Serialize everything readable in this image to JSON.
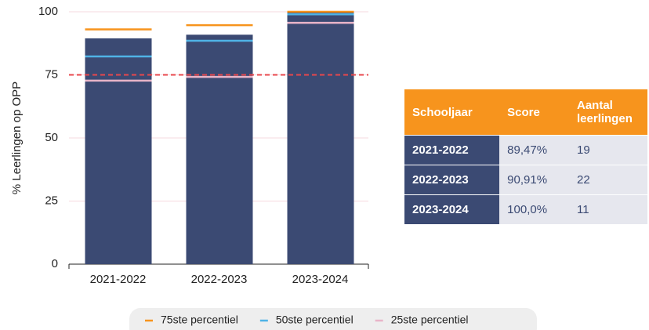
{
  "chart_data": {
    "type": "bar",
    "y_label": "% Leerlingen op OPP",
    "categories": [
      "2021-2022",
      "2022-2023",
      "2023-2024"
    ],
    "values": [
      89.47,
      90.91,
      100
    ],
    "color": "#3b4a73",
    "series": [
      {
        "name": "75ste percentiel",
        "color": "#f7941d",
        "values": [
          93,
          94.7,
          100
        ]
      },
      {
        "name": "50ste percentiel",
        "color": "#4fb3e6",
        "values": [
          82.3,
          88.5,
          99
        ]
      },
      {
        "name": "25ste percentiel",
        "color": "#e8b4c8",
        "values": [
          72.7,
          74.2,
          95.6
        ]
      }
    ],
    "reference_line": {
      "value": 75,
      "color": "#e8474c"
    },
    "ylim": [
      0,
      100
    ],
    "yticks": [
      0,
      25,
      50,
      75,
      100
    ],
    "grid": true,
    "legend": "bottom"
  },
  "table": {
    "header": [
      "Schooljaar",
      "Score",
      "Aantal leerlingen"
    ],
    "rows": [
      [
        "2021-2022",
        "89,47%",
        "19"
      ],
      [
        "2022-2023",
        "90,91%",
        "22"
      ],
      [
        "2023-2024",
        "100,0%",
        "11"
      ]
    ]
  }
}
